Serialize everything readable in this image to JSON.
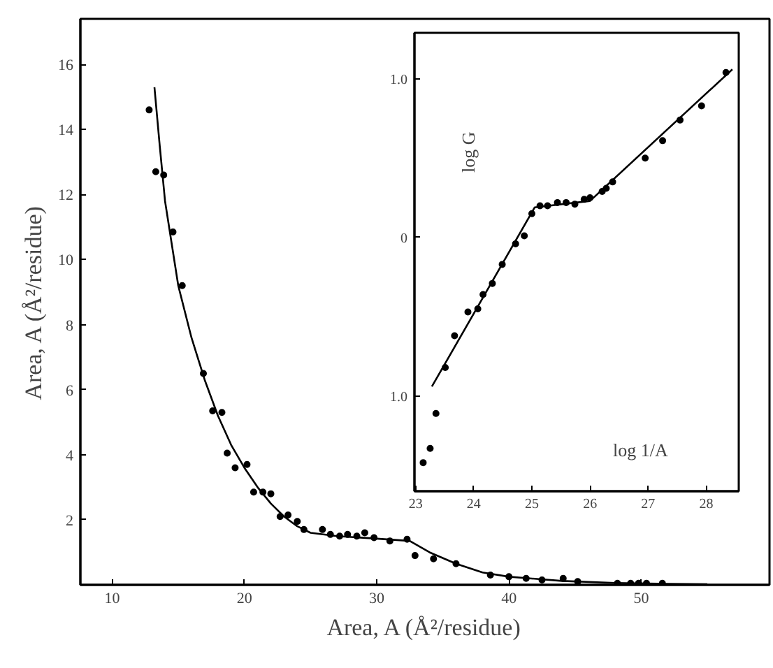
{
  "chart_data": [
    {
      "type": "scatter",
      "xlabel": "Area, A (Å²/residue)",
      "ylabel": "Area, A (Å²/residue)",
      "xlim": [
        7.6,
        59.7
      ],
      "ylim": [
        0,
        17.4
      ],
      "xticks": [
        10,
        20,
        30,
        40,
        50
      ],
      "yticks": [
        2,
        4,
        6,
        8,
        10,
        12,
        14,
        16
      ],
      "grid": false,
      "line_style": "solid",
      "series": [
        {
          "marker": "circle",
          "color": "#000000",
          "x": [
            12.8,
            13.3,
            13.9,
            14.6,
            15.3,
            16.9,
            17.6,
            18.3,
            18.7,
            19.3,
            20.2,
            20.7,
            21.4,
            22.0,
            22.7,
            23.3,
            24.0,
            24.5,
            25.9,
            26.5,
            27.2,
            27.8,
            28.5,
            29.1,
            29.8,
            31.0,
            32.3,
            32.9,
            34.3,
            36.0,
            38.6,
            40.0,
            41.3,
            42.5,
            44.1,
            45.2,
            48.2,
            49.2,
            49.8,
            50.4,
            51.6
          ],
          "values": [
            14.6,
            12.7,
            12.6,
            10.85,
            9.2,
            6.5,
            5.35,
            5.3,
            4.05,
            3.6,
            3.7,
            2.85,
            2.85,
            2.8,
            2.1,
            2.15,
            1.95,
            1.7,
            1.7,
            1.55,
            1.5,
            1.55,
            1.5,
            1.6,
            1.45,
            1.35,
            1.4,
            0.9,
            0.8,
            0.65,
            0.3,
            0.25,
            0.2,
            0.15,
            0.2,
            0.1,
            0.05,
            0.05,
            0.05,
            0.05,
            0.05
          ]
        },
        {
          "type": "line",
          "color": "#000000",
          "x": [
            13.2,
            13.6,
            14,
            15,
            16,
            17,
            18,
            19,
            20,
            21,
            22,
            23,
            24,
            25,
            27,
            30,
            32.5,
            34,
            36,
            38,
            40,
            44,
            48,
            52,
            55
          ],
          "values": [
            15.3,
            13.5,
            11.8,
            9.2,
            7.6,
            6.3,
            5.2,
            4.3,
            3.6,
            3.0,
            2.5,
            2.1,
            1.8,
            1.6,
            1.5,
            1.42,
            1.35,
            1.0,
            0.65,
            0.38,
            0.25,
            0.12,
            0.06,
            0.03,
            0.02
          ]
        }
      ]
    },
    {
      "type": "scatter",
      "xlabel": "log 1/A",
      "ylabel": "log G",
      "xlim": [
        22.98,
        28.56
      ],
      "ylim": [
        -1.6,
        1.29
      ],
      "xticks": [
        23,
        24,
        25,
        26,
        27,
        28
      ],
      "yticks": [
        {
          "value": 1,
          "label": "1.0"
        },
        0,
        {
          "value": -1,
          "label": "1.0"
        }
      ],
      "grid": false,
      "line_style": "solid",
      "series": [
        {
          "marker": "circle",
          "color": "#000000",
          "x": [
            23.13,
            23.25,
            23.35,
            23.51,
            23.67,
            23.9,
            24.07,
            24.16,
            24.32,
            24.49,
            24.72,
            24.87,
            25.0,
            25.14,
            25.27,
            25.44,
            25.59,
            25.74,
            25.9,
            26.0,
            26.21,
            26.28,
            26.39,
            26.95,
            27.25,
            27.55,
            27.92,
            28.34
          ],
          "values": [
            -1.42,
            -1.33,
            -1.11,
            -0.82,
            -0.62,
            -0.47,
            -0.45,
            -0.36,
            -0.29,
            -0.17,
            -0.04,
            0.01,
            0.15,
            0.2,
            0.2,
            0.22,
            0.22,
            0.21,
            0.24,
            0.25,
            0.29,
            0.31,
            0.35,
            0.5,
            0.61,
            0.74,
            0.83,
            1.04
          ]
        },
        {
          "type": "line",
          "color": "#000000",
          "x": [
            23.28,
            25.05,
            26.0,
            28.45
          ],
          "values": [
            -0.94,
            0.19,
            0.23,
            1.06
          ]
        }
      ]
    }
  ]
}
